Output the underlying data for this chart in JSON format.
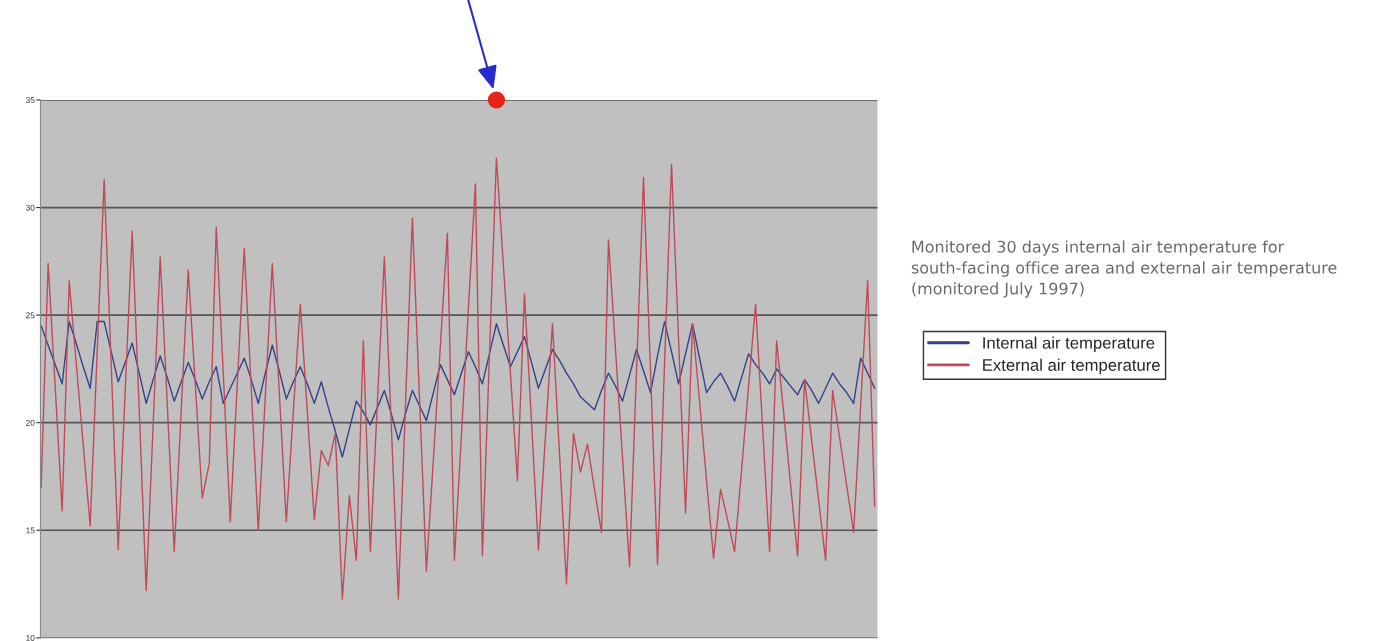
{
  "chart_data": {
    "type": "line",
    "categories": [
      null,
      null,
      null,
      null,
      null,
      null,
      null,
      null,
      null,
      null,
      null,
      null,
      null,
      null,
      null,
      null,
      null,
      null,
      null,
      null,
      null,
      null,
      null,
      null,
      null,
      null,
      null,
      null,
      null,
      null,
      null,
      null,
      null,
      null,
      null,
      null,
      null,
      null,
      null,
      null,
      null,
      null,
      null,
      null,
      null,
      null,
      null,
      null,
      null,
      null,
      null,
      null,
      null,
      null,
      null,
      null,
      null,
      null,
      null,
      null,
      null,
      null,
      null,
      null,
      null,
      null,
      null,
      null,
      null,
      null,
      null,
      null,
      null,
      null,
      null,
      null,
      null,
      null,
      null,
      null,
      null,
      null,
      null,
      null,
      null,
      null,
      null,
      null,
      null,
      null,
      null,
      null,
      null,
      null,
      null,
      null,
      null,
      null,
      null,
      null,
      null,
      null,
      null,
      null,
      null,
      null,
      null,
      null,
      null,
      null,
      null,
      null,
      null,
      null,
      null,
      null,
      null,
      null,
      null,
      null
    ],
    "series": [
      {
        "name": "Internal air temperature",
        "color": "#34428a",
        "values": [
          24.5,
          23.6,
          22.7,
          21.8,
          24.7,
          23.7,
          22.6,
          21.6,
          24.7,
          24.7,
          23.3,
          21.9,
          22.8,
          23.7,
          22.3,
          20.9,
          22.0,
          23.1,
          22.1,
          21.0,
          21.9,
          22.8,
          22.0,
          21.1,
          21.9,
          22.6,
          20.9,
          21.6,
          22.3,
          23.0,
          22.0,
          20.9,
          22.3,
          23.6,
          22.4,
          21.1,
          21.9,
          22.6,
          21.8,
          20.9,
          21.9,
          20.7,
          19.6,
          18.4,
          19.7,
          21.0,
          20.5,
          19.9,
          20.7,
          21.5,
          20.4,
          19.2,
          20.4,
          21.5,
          20.8,
          20.1,
          21.4,
          22.7,
          22.0,
          21.3,
          22.3,
          23.3,
          22.6,
          21.8,
          23.2,
          24.6,
          23.6,
          22.6,
          23.3,
          24.0,
          22.8,
          21.6,
          22.5,
          23.4,
          22.9,
          22.3,
          21.8,
          21.2,
          20.9,
          20.6,
          21.5,
          22.3,
          21.7,
          21.0,
          22.2,
          23.4,
          22.4,
          21.4,
          23.1,
          24.7,
          23.3,
          21.8,
          23.2,
          24.6,
          23.0,
          21.4,
          21.9,
          22.3,
          21.7,
          21.0,
          22.1,
          23.2,
          22.7,
          22.3,
          21.8,
          22.5,
          22.1,
          21.7,
          21.3,
          22.0,
          21.5,
          20.9,
          21.6,
          22.3,
          21.8,
          21.4,
          20.9,
          23.0,
          22.3,
          21.6
        ]
      },
      {
        "name": "External air temperature",
        "color": "#c04a58",
        "values": [
          17.0,
          27.4,
          21.7,
          15.9,
          26.6,
          22.8,
          19.0,
          15.2,
          23.3,
          31.3,
          22.7,
          14.1,
          21.5,
          28.9,
          20.6,
          12.2,
          20.0,
          27.7,
          20.9,
          14.0,
          20.6,
          27.1,
          21.8,
          16.5,
          18.1,
          29.1,
          22.3,
          15.4,
          21.8,
          28.1,
          21.6,
          15.0,
          21.2,
          27.4,
          21.4,
          15.4,
          20.5,
          25.5,
          20.5,
          15.5,
          18.7,
          18.0,
          19.5,
          11.8,
          16.6,
          13.6,
          23.8,
          14.0,
          20.9,
          27.7,
          19.8,
          11.8,
          20.7,
          29.5,
          21.3,
          13.1,
          18.3,
          23.6,
          28.8,
          13.6,
          19.4,
          25.3,
          31.1,
          13.8,
          23.1,
          32.3,
          27.3,
          22.3,
          17.3,
          26.0,
          20.1,
          14.1,
          19.4,
          24.6,
          18.6,
          12.5,
          19.5,
          17.7,
          19.0,
          16.9,
          14.9,
          28.5,
          23.4,
          18.4,
          13.3,
          22.4,
          31.4,
          22.4,
          13.4,
          22.7,
          32.0,
          23.9,
          15.8,
          24.6,
          21.0,
          17.3,
          13.7,
          16.9,
          15.5,
          14.0,
          17.8,
          21.7,
          25.5,
          19.8,
          14.0,
          23.8,
          20.5,
          17.1,
          13.8,
          22.0,
          19.2,
          16.4,
          13.6,
          21.5,
          19.3,
          17.1,
          14.9,
          20.8,
          26.6,
          16.1
        ]
      },
      {
        "type": "scatter",
        "color": "#e8231a",
        "marker": "circle",
        "values": [
          null,
          null,
          null,
          null,
          null,
          null,
          null,
          null,
          null,
          null,
          null,
          null,
          null,
          null,
          null,
          null,
          null,
          null,
          null,
          null,
          null,
          null,
          null,
          null,
          null,
          null,
          null,
          null,
          null,
          null,
          null,
          null,
          null,
          null,
          null,
          null,
          null,
          null,
          null,
          null,
          null,
          null,
          null,
          null,
          null,
          null,
          null,
          null,
          null,
          null,
          null,
          null,
          null,
          null,
          null,
          null,
          null,
          null,
          null,
          null,
          null,
          null,
          null,
          null,
          null,
          35,
          null,
          null,
          null,
          null,
          null,
          null,
          null,
          null,
          null,
          null,
          null,
          null,
          null,
          null,
          null,
          null,
          null,
          null,
          null,
          null,
          null,
          null,
          null,
          null,
          null,
          null,
          null,
          null,
          null,
          null,
          null,
          null,
          null,
          null,
          null,
          null,
          null,
          null,
          null,
          null,
          null,
          null,
          null,
          null,
          null,
          null,
          null,
          null,
          null,
          null,
          null,
          null,
          null,
          null
        ]
      }
    ],
    "ylim": [
      10,
      35
    ],
    "yticks": [
      10,
      15,
      20,
      25,
      30,
      35
    ],
    "grid": "y",
    "legend": "right",
    "tick_labels": "y",
    "marker": "none",
    "line_style": "solid",
    "annotations": [
      "Monitored 30 days internal air temperature for south-facing office area and external air temperature (monitored July 1997)"
    ]
  }
}
